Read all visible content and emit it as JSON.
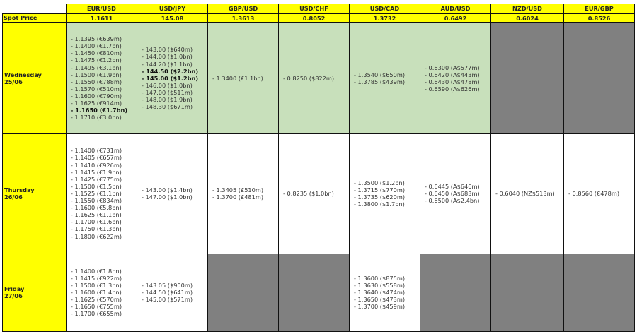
{
  "colors": {
    "header": "#ffff00",
    "wednesday_fill": "#c8e0bb",
    "empty_fill": "#808080"
  },
  "spot_label": "Spot Price",
  "pairs": [
    {
      "name": "EUR/USD",
      "spot": "1.1611"
    },
    {
      "name": "USD/JPY",
      "spot": "145.08"
    },
    {
      "name": "GBP/USD",
      "spot": "1.3613"
    },
    {
      "name": "USD/CHF",
      "spot": "0.8052"
    },
    {
      "name": "USD/CAD",
      "spot": "1.3732"
    },
    {
      "name": "AUD/USD",
      "spot": "0.6492"
    },
    {
      "name": "NZD/USD",
      "spot": "0.6024"
    },
    {
      "name": "EUR/GBP",
      "spot": "0.8526"
    }
  ],
  "rows": [
    {
      "day": "Wednesday",
      "date": "25/06",
      "fill": "green",
      "cells": [
        {
          "lines": [
            {
              "text": "- 1.1395 (€639m)"
            },
            {
              "text": "- 1.1400 (€1.7bn)"
            },
            {
              "text": "- 1.1450 (€810m)"
            },
            {
              "text": "- 1.1475 (€1.2bn)"
            },
            {
              "text": "- 1.1495 (€3.1bn)"
            },
            {
              "text": "- 1.1500 (€1.9bn)"
            },
            {
              "text": "- 1.1550 (€788m)"
            },
            {
              "text": "- 1.1570 (€510m)"
            },
            {
              "text": "- 1.1600 (€790m)"
            },
            {
              "text": "- 1.1625 (€914m)"
            },
            {
              "text": "- 1.1650 (€1.7bn)",
              "bold": true
            },
            {
              "text": "- 1.1710 (€3.0bn)"
            }
          ]
        },
        {
          "lines": [
            {
              "text": "- 143.00 ($640m)"
            },
            {
              "text": "- 144.00 ($1.0bn)"
            },
            {
              "text": "- 144.20 ($1.1bn)"
            },
            {
              "text": "- 144.50 ($2.2bn)",
              "bold": true
            },
            {
              "text": "- 145.00 ($1.2bn)",
              "bold": true
            },
            {
              "text": "- 146.00 ($1.0bn)"
            },
            {
              "text": "- 147.00 ($511m)"
            },
            {
              "text": "- 148.00 ($1.9bn)"
            },
            {
              "text": "- 148.30 ($671m)"
            }
          ]
        },
        {
          "lines": [
            {
              "text": "- 1.3400 (£1.1bn)"
            }
          ]
        },
        {
          "lines": [
            {
              "text": "- 0.8250 ($822m)"
            }
          ]
        },
        {
          "lines": [
            {
              "text": "- 1.3540 ($650m)"
            },
            {
              "text": "- 1.3785 ($439m)"
            }
          ]
        },
        {
          "lines": [
            {
              "text": "- 0.6300 (A$577m)"
            },
            {
              "text": "- 0.6420 (A$443m)"
            },
            {
              "text": "- 0.6430 (A$478m)"
            },
            {
              "text": "- 0.6590 (A$626m)"
            }
          ]
        },
        {
          "empty": true,
          "lines": []
        },
        {
          "empty": true,
          "lines": []
        }
      ]
    },
    {
      "day": "Thursday",
      "date": "26/06",
      "fill": "white",
      "cells": [
        {
          "lines": [
            {
              "text": "- 1.1400 (€731m)"
            },
            {
              "text": "- 1.1405 (€657m)"
            },
            {
              "text": "- 1.1410 (€926m)"
            },
            {
              "text": "- 1.1415 (€1.9bn)"
            },
            {
              "text": "- 1.1425 (€775m)"
            },
            {
              "text": "- 1.1500 (€1.5bn)"
            },
            {
              "text": "- 1.1525 (€1.1bn)"
            },
            {
              "text": "- 1.1550 (€834m)"
            },
            {
              "text": "- 1.1600 (€5.8bn)"
            },
            {
              "text": "- 1.1625 (€1.1bn)"
            },
            {
              "text": "- 1.1700 (€1.6bn)"
            },
            {
              "text": "- 1.1750 (€1.3bn)"
            },
            {
              "text": "- 1.1800 (€622m)"
            }
          ]
        },
        {
          "lines": [
            {
              "text": "- 143.00 ($1.4bn)"
            },
            {
              "text": "- 147.00 ($1.0bn)"
            }
          ]
        },
        {
          "lines": [
            {
              "text": "- 1.3405 (£510m)"
            },
            {
              "text": "- 1.3700 (£481m)"
            }
          ]
        },
        {
          "lines": [
            {
              "text": "- 0.8235 ($1.0bn)"
            }
          ]
        },
        {
          "lines": [
            {
              "text": "- 1.3500 ($1.2bn)"
            },
            {
              "text": "- 1.3715 ($770m)"
            },
            {
              "text": "- 1.3735 ($620m)"
            },
            {
              "text": "- 1.3800 ($1.7bn)"
            }
          ]
        },
        {
          "lines": [
            {
              "text": "- 0.6445 (A$646m)"
            },
            {
              "text": "- 0.6450 (A$683m)"
            },
            {
              "text": "- 0.6500 (A$2.4bn)"
            }
          ]
        },
        {
          "lines": [
            {
              "text": "- 0.6040 (NZ$513m)"
            }
          ]
        },
        {
          "lines": [
            {
              "text": "- 0.8560 (€478m)"
            }
          ]
        }
      ]
    },
    {
      "day": "Friday",
      "date": "27/06",
      "fill": "white",
      "cells": [
        {
          "lines": [
            {
              "text": "- 1.1400 (€1.8bn)"
            },
            {
              "text": "- 1.1415 (€922m)"
            },
            {
              "text": "- 1.1500 (€1.3bn)"
            },
            {
              "text": "- 1.1600 (€1.4bn)"
            },
            {
              "text": "- 1.1625 (€570m)"
            },
            {
              "text": "- 1.1650 (€755m)"
            },
            {
              "text": "- 1.1700 (€655m)"
            }
          ]
        },
        {
          "lines": [
            {
              "text": "- 143.05 ($900m)"
            },
            {
              "text": "- 144.50 ($641m)"
            },
            {
              "text": "- 145.00 ($571m)"
            }
          ]
        },
        {
          "empty": true,
          "lines": []
        },
        {
          "empty": true,
          "lines": []
        },
        {
          "lines": [
            {
              "text": "- 1.3600 ($875m)"
            },
            {
              "text": "- 1.3630 ($558m)"
            },
            {
              "text": "- 1.3640 ($474m)"
            },
            {
              "text": "- 1.3650 ($473m)"
            },
            {
              "text": "- 1.3700 ($459m)"
            }
          ]
        },
        {
          "empty": true,
          "lines": []
        },
        {
          "empty": true,
          "lines": []
        },
        {
          "empty": true,
          "lines": []
        }
      ]
    }
  ]
}
